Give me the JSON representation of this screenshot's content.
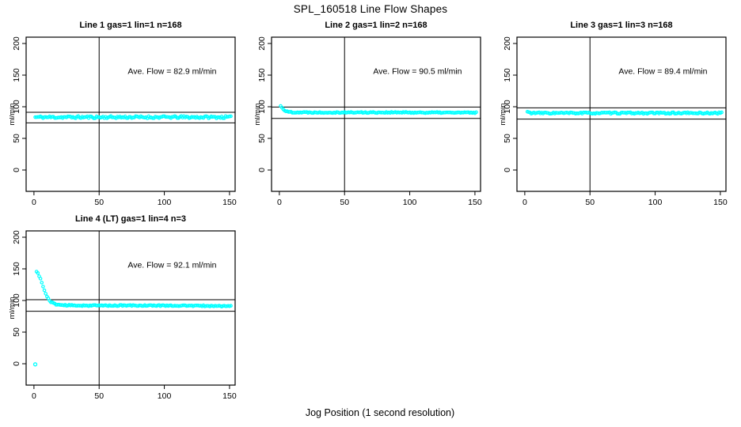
{
  "page": {
    "main_title": "SPL_160518  Line Flow Shapes",
    "x_axis_label": "Jog Position (1 second resolution)"
  },
  "colors": {
    "point": "#00FFFF",
    "axis": "#000000",
    "text": "#000000",
    "background": "#FFFFFF"
  },
  "chart_data": {
    "type": "scatter",
    "title": "SPL_160518  Line Flow Shapes",
    "xlabel": "Jog Position (1 second resolution)",
    "ylabel": "ml/min",
    "legend": "none",
    "grid": false,
    "x_ticks": [
      0,
      50,
      100,
      150
    ],
    "y_ticks": [
      0,
      50,
      100,
      150,
      200
    ],
    "xlim_drawn": [
      -6,
      154.3
    ],
    "ylim_drawn": [
      -33.75,
      210
    ],
    "panels": [
      {
        "title": "Line 1 gas=1 lin=1 n=168",
        "ave_flow": 82.9,
        "annotation": "Ave. Flow =  82.9  ml/min",
        "hlines": [
          91.2,
          74.6
        ],
        "vline_x": 50,
        "points": {
          "x_start": 1,
          "x_end": 151,
          "x_step": 1,
          "key_points": [
            [
              1,
              83.5
            ],
            [
              50,
              83.5
            ],
            [
              100,
              83.5
            ],
            [
              151,
              83.5
            ]
          ],
          "jitter": 1.8,
          "seed": 11
        },
        "outliers": []
      },
      {
        "title": "Line 2 gas=1 lin=2 n=168",
        "ave_flow": 90.5,
        "annotation": "Ave. Flow =  90.5  ml/min",
        "hlines": [
          99.6,
          81.5
        ],
        "vline_x": 50,
        "points": {
          "x_start": 1,
          "x_end": 151,
          "x_step": 1,
          "key_points": [
            [
              1,
              101
            ],
            [
              2,
              99
            ],
            [
              3,
              96.5
            ],
            [
              4,
              94.5
            ],
            [
              5,
              93
            ],
            [
              6,
              92.2
            ],
            [
              8,
              91.6
            ],
            [
              12,
              91.2
            ],
            [
              30,
              91
            ],
            [
              80,
              91
            ],
            [
              151,
              90.6
            ]
          ],
          "jitter": 0.9,
          "seed": 22
        },
        "outliers": []
      },
      {
        "title": "Line 3 gas=1 lin=3 n=168",
        "ave_flow": 89.4,
        "annotation": "Ave. Flow =  89.4  ml/min",
        "hlines": [
          98.3,
          80.5
        ],
        "vline_x": 50,
        "points": {
          "x_start": 2,
          "x_end": 151,
          "x_step": 1,
          "key_points": [
            [
              2,
              92
            ],
            [
              3,
              91
            ],
            [
              5,
              90.3
            ],
            [
              10,
              90
            ],
            [
              80,
              90
            ],
            [
              151,
              90
            ]
          ],
          "jitter": 1.2,
          "seed": 33
        },
        "outliers": []
      },
      {
        "title": "Line 4 (LT) gas=1 lin=4 n=3",
        "ave_flow": 92.1,
        "annotation": "Ave. Flow =  92.1  ml/min",
        "hlines": [
          101.3,
          82.9
        ],
        "vline_x": 50,
        "points": {
          "x_start": 2,
          "x_end": 151,
          "x_step": 1,
          "key_points": [
            [
              2,
              145
            ],
            [
              3,
              144
            ],
            [
              4,
              139
            ],
            [
              5,
              134
            ],
            [
              6,
              128
            ],
            [
              7,
              122
            ],
            [
              8,
              116
            ],
            [
              9,
              111
            ],
            [
              10,
              106
            ],
            [
              11,
              103
            ],
            [
              12,
              100
            ],
            [
              13,
              98
            ],
            [
              14,
              96.5
            ],
            [
              15,
              95.5
            ],
            [
              16,
              94.5
            ],
            [
              18,
              93.5
            ],
            [
              20,
              93
            ],
            [
              25,
              92.3
            ],
            [
              40,
              92
            ],
            [
              60,
              92
            ],
            [
              100,
              92
            ],
            [
              130,
              91.5
            ],
            [
              151,
              91
            ]
          ],
          "jitter": 0.9,
          "seed": 44
        },
        "outliers": [
          [
            1,
            -1
          ]
        ]
      }
    ]
  }
}
